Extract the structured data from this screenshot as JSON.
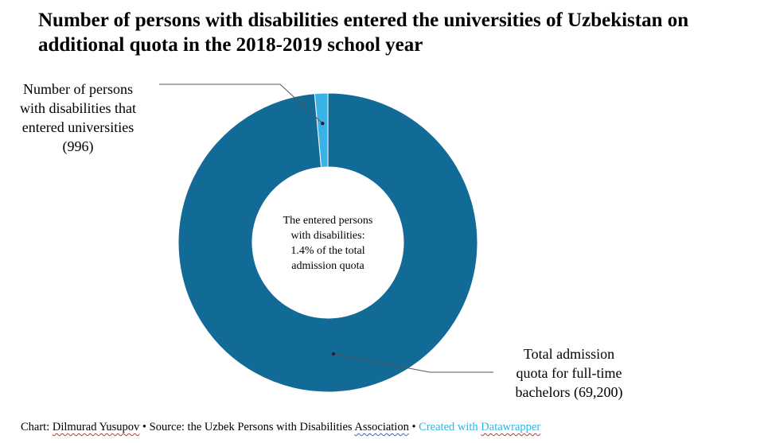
{
  "chart_data": {
    "type": "pie",
    "title": "Number of persons with disabilities entered the universities of Uzbekistan on additional quota in the 2018-2019 school year",
    "center_text": [
      "The entered persons",
      "with disabilities:",
      "1.4% of the total",
      "admission quota"
    ],
    "slices": [
      {
        "label_lines": [
          "Number of persons",
          "with disabilities that",
          "entered universities",
          "(996)"
        ],
        "value": 996,
        "color": "#3bb2e6"
      },
      {
        "label_lines": [
          "Total admission",
          "quota for full-time",
          "bachelors (69,200)"
        ],
        "value": 69200,
        "color": "#126b96"
      }
    ],
    "legend": "none"
  },
  "footer": {
    "prefix": "Chart: ",
    "author": "Dilmurad Yusupov",
    "source_prefix": " • Source: the Uzbek Persons with Disabilities ",
    "source_org": "Association",
    "separator": " • ",
    "credit_prefix": "Created with ",
    "credit_tool": "Datawrapper"
  }
}
